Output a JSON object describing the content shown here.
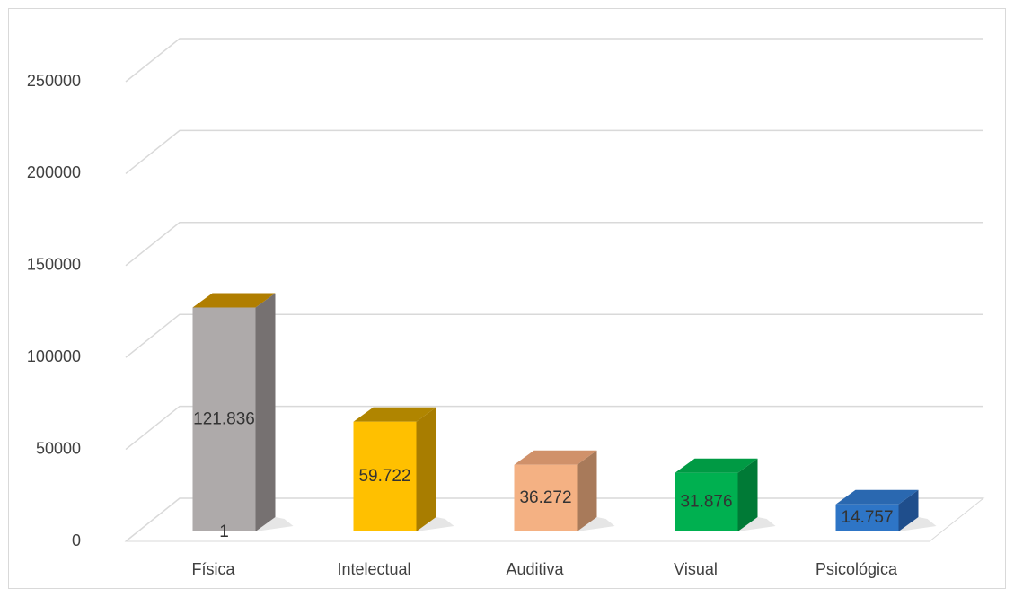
{
  "chart_data": {
    "type": "bar",
    "categories": [
      "Física",
      "Intelectual",
      "Auditiva",
      "Visual",
      "Psicológica"
    ],
    "values": [
      121836,
      59722,
      36272,
      31876,
      14757
    ],
    "value_labels": [
      "121.836",
      "59.722",
      "36.272",
      "31.876",
      "14.757"
    ],
    "colors": [
      "#aeaaaa",
      "#ffc000",
      "#f4b183",
      "#00b050",
      "#2e75c6"
    ],
    "side_colors": [
      "#767171",
      "#a87d00",
      "#a87a5a",
      "#007a36",
      "#1f4e8c"
    ],
    "top_colors": [
      "#b07e00",
      "#b08500",
      "#d0916a",
      "#009a44",
      "#2a68b0"
    ],
    "annotations": [
      "1"
    ],
    "ylim": [
      0,
      250000
    ],
    "yticks": [
      0,
      50000,
      100000,
      150000,
      200000,
      250000
    ],
    "grid": true
  }
}
